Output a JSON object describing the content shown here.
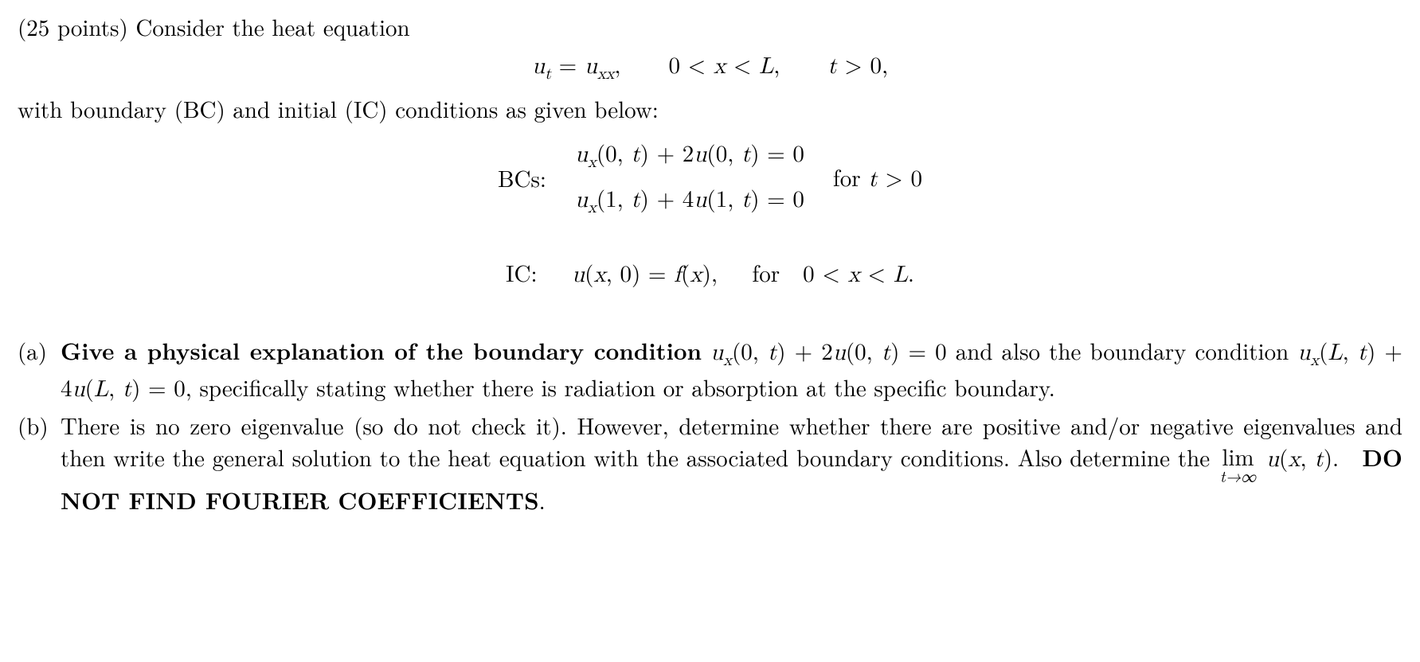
{
  "points_prefix": "(25 points) Consider the heat equation",
  "eq_main_html": "<span class='math'>u<span class='sub'>t</span></span> = <span class='math'>u<span class='sub'>xx</span></span><span class='rm'>,</span><span class='space'></span>0 &lt; <span class='math'>x</span> &lt; <span class='math'>L</span><span class='rm'>,</span><span class='space'></span><span class='math'>t</span> &gt; 0<span class='rm'>,</span>",
  "with_bc_ic": "with boundary (BC) and initial (IC) conditions as given below:",
  "bc_label": "BCs:",
  "bc1_html": "<span class='math'>u<span class='sub'>x</span></span>(0, <span class='math'>t</span>) + 2<span class='math'>u</span>(0, <span class='math'>t</span>) = 0",
  "bc2_html": "<span class='math'>u<span class='sub'>x</span></span>(1, <span class='math'>t</span>) + 4<span class='math'>u</span>(1, <span class='math'>t</span>) = 0",
  "bc_for_html": "for <span class='math'>t</span> &gt; 0",
  "ic_html": "IC:&nbsp;&nbsp;&nbsp;<span class='math'>u</span>(<span class='math'>x</span>, 0) = <span class='math'>f</span>(<span class='math'>x</span>),&nbsp;&nbsp;&nbsp;for&nbsp;&nbsp;0 &lt; <span class='math'>x</span> &lt; <span class='math'>L</span>.",
  "parts": {
    "a": {
      "label": "(a)",
      "html": "<span class='bold'>Give a physical explanation of the boundary condition</span> <span class='math'>u<span class='sub'>x</span></span>(0, <span class='math'>t</span>) + 2<span class='math'>u</span>(0, <span class='math'>t</span>) = 0 and also the boundary condition <span class='math'>u<span class='sub'>x</span></span>(<span class='math'>L</span>, <span class='math'>t</span>) + 4<span class='math'>u</span>(<span class='math'>L</span>, <span class='math'>t</span>) = 0, specifically stating whether there is radiation or absorption at the specific boundary."
    },
    "b": {
      "label": "(b)",
      "html": "There is no zero eigenvalue (so do not check it). However, determine whether there are positive and/or negative eigenvalues and then write the general solution to the heat equation with the associated boundary conditions. Also determine the <span class='limit'><span class='top'>lim</span><span class='bot'>t&rarr;&infin;</span></span> <span class='math'>u</span>(<span class='math'>x</span>, <span class='math'>t</span>).&nbsp;&nbsp;<span class='bold'>DO NOT FIND FOURIER COEFFICIENTS</span>."
    }
  }
}
